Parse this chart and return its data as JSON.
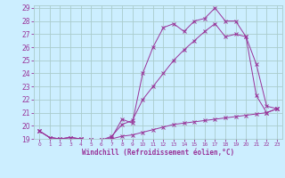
{
  "xlabel": "Windchill (Refroidissement éolien,°C)",
  "background_color": "#cceeff",
  "grid_color": "#aacccc",
  "line_color": "#993399",
  "xlim": [
    -0.5,
    23.5
  ],
  "ylim": [
    19,
    29.2
  ],
  "xticks": [
    0,
    1,
    2,
    3,
    4,
    5,
    6,
    7,
    8,
    9,
    10,
    11,
    12,
    13,
    14,
    15,
    16,
    17,
    18,
    19,
    20,
    21,
    22,
    23
  ],
  "yticks": [
    19,
    20,
    21,
    22,
    23,
    24,
    25,
    26,
    27,
    28,
    29
  ],
  "line1_x": [
    0,
    1,
    2,
    3,
    4,
    5,
    6,
    7,
    8,
    9,
    10,
    11,
    12,
    13,
    14,
    15,
    16,
    17,
    18,
    19,
    20,
    21,
    22,
    23
  ],
  "line1_y": [
    19.6,
    19.1,
    19.0,
    19.1,
    19.0,
    18.9,
    18.9,
    19.1,
    20.5,
    20.2,
    24.0,
    26.0,
    27.5,
    27.8,
    27.2,
    28.0,
    28.2,
    29.0,
    28.0,
    28.0,
    26.8,
    22.3,
    21.0,
    21.3
  ],
  "line2_x": [
    0,
    1,
    2,
    3,
    4,
    5,
    6,
    7,
    8,
    9,
    10,
    11,
    12,
    13,
    14,
    15,
    16,
    17,
    18,
    19,
    20,
    21,
    22,
    23
  ],
  "line2_y": [
    19.6,
    19.1,
    19.0,
    19.1,
    19.0,
    18.9,
    18.9,
    19.2,
    20.1,
    20.4,
    22.0,
    23.0,
    24.0,
    25.0,
    25.8,
    26.5,
    27.2,
    27.8,
    26.8,
    27.0,
    26.8,
    24.7,
    21.5,
    21.3
  ],
  "line3_x": [
    0,
    1,
    2,
    3,
    4,
    5,
    6,
    7,
    8,
    9,
    10,
    11,
    12,
    13,
    14,
    15,
    16,
    17,
    18,
    19,
    20,
    21,
    22,
    23
  ],
  "line3_y": [
    19.6,
    19.1,
    19.0,
    19.1,
    19.0,
    18.9,
    18.9,
    19.0,
    19.2,
    19.3,
    19.5,
    19.7,
    19.9,
    20.1,
    20.2,
    20.3,
    20.4,
    20.5,
    20.6,
    20.7,
    20.8,
    20.9,
    21.0,
    21.3
  ]
}
